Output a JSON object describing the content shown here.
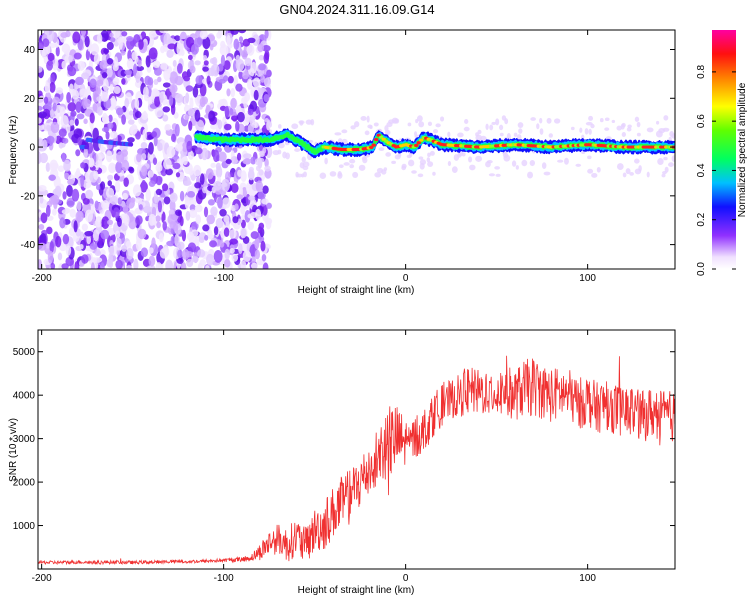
{
  "title": "GN04.2024.311.16.09.G14",
  "colorbar": {
    "label": "Normalized spectral amplitude",
    "range": [
      0,
      0.97
    ],
    "ticks": [
      0.0,
      0.2,
      0.4,
      0.6,
      0.8
    ],
    "tick_labels": [
      "0.0",
      "0.2",
      "0.4",
      "0.6",
      "0.8"
    ]
  },
  "chart_data": [
    {
      "type": "heatmap",
      "xlabel": "Height of straight line (km)",
      "ylabel": "Frequency (Hz)",
      "xlim": [
        -202,
        148
      ],
      "ylim": [
        -50,
        48
      ],
      "xticks": [
        -200,
        -100,
        0,
        100
      ],
      "xtick_labels": [
        "-200",
        "-100",
        "0",
        "100"
      ],
      "yticks": [
        -40,
        -20,
        0,
        20,
        40
      ],
      "ytick_labels": [
        "-40",
        "-20",
        "0",
        "20",
        "40"
      ],
      "noise_region_x": [
        -202,
        -85
      ],
      "signal_start_x": -115,
      "ridge": [
        [
          -175,
          3
        ],
        [
          -165,
          2
        ],
        [
          -150,
          1
        ],
        [
          -115,
          4
        ],
        [
          -100,
          3
        ],
        [
          -85,
          3
        ],
        [
          -75,
          3
        ],
        [
          -65,
          5
        ],
        [
          -58,
          2
        ],
        [
          -50,
          -2
        ],
        [
          -45,
          0
        ],
        [
          -35,
          -1
        ],
        [
          -25,
          -1
        ],
        [
          -18,
          0
        ],
        [
          -15,
          5
        ],
        [
          -10,
          2
        ],
        [
          -5,
          0
        ],
        [
          0,
          1
        ],
        [
          5,
          0
        ],
        [
          10,
          4
        ],
        [
          20,
          1
        ],
        [
          40,
          0
        ],
        [
          60,
          1
        ],
        [
          80,
          0
        ],
        [
          100,
          1
        ],
        [
          120,
          0
        ],
        [
          148,
          0
        ]
      ]
    },
    {
      "type": "line",
      "xlabel": "Height of straight line (km)",
      "ylabel": "SNR (10 * v/v)",
      "xlim": [
        -202,
        148
      ],
      "ylim": [
        0,
        5500
      ],
      "xticks": [
        -200,
        -100,
        0,
        100
      ],
      "xtick_labels": [
        "-200",
        "-100",
        "0",
        "100"
      ],
      "yticks": [
        1000,
        2000,
        3000,
        4000,
        5000
      ],
      "ytick_labels": [
        "1000",
        "2000",
        "3000",
        "4000",
        "5000"
      ],
      "color": "#f03030",
      "series": [
        {
          "x": [
            -202,
            -190,
            -180,
            -170,
            -160,
            -150,
            -140,
            -130,
            -120,
            -110,
            -100,
            -90,
            -85,
            -80,
            -75,
            -70,
            -65,
            -60,
            -55,
            -50,
            -45,
            -40,
            -35,
            -30,
            -25,
            -20,
            -15,
            -10,
            -5,
            0,
            5,
            10,
            15,
            20,
            25,
            30,
            35,
            40,
            45,
            50,
            55,
            60,
            65,
            70,
            75,
            80,
            85,
            90,
            95,
            100,
            105,
            110,
            115,
            120,
            125,
            130,
            135,
            140,
            148
          ],
          "y": [
            150,
            150,
            160,
            150,
            160,
            150,
            160,
            170,
            170,
            180,
            200,
            220,
            260,
            400,
            600,
            700,
            550,
            750,
            500,
            900,
            1000,
            1300,
            1500,
            1700,
            2000,
            2300,
            2600,
            2900,
            3000,
            2900,
            3000,
            3200,
            3500,
            3800,
            3900,
            4000,
            4100,
            4050,
            4100,
            4050,
            4100,
            4000,
            4150,
            4200,
            4100,
            4000,
            4050,
            4000,
            3800,
            3900,
            3700,
            3800,
            3700,
            3600,
            3650,
            3500,
            3600,
            3550,
            3500
          ],
          "noise": [
            40,
            40,
            40,
            40,
            40,
            40,
            40,
            40,
            40,
            40,
            40,
            60,
            80,
            200,
            300,
            350,
            400,
            450,
            450,
            500,
            600,
            600,
            650,
            650,
            650,
            650,
            700,
            900,
            800,
            600,
            500,
            500,
            500,
            500,
            450,
            500,
            550,
            550,
            550,
            550,
            600,
            600,
            650,
            700,
            650,
            650,
            600,
            600,
            600,
            600,
            600,
            600,
            600,
            600,
            600,
            600,
            600,
            600,
            600
          ]
        }
      ]
    }
  ]
}
